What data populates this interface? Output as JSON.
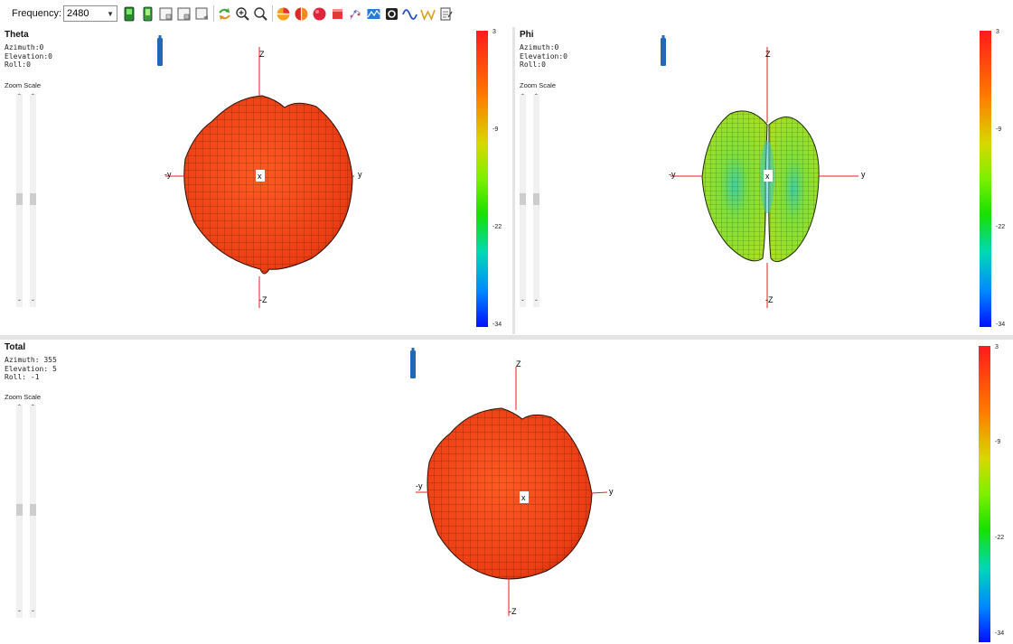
{
  "toolbar": {
    "frequency_label": "Frequency:",
    "frequency_value": "2480",
    "icons": [
      "device-green-icon",
      "device-green-2-icon",
      "phone-icon",
      "tablet-icon",
      "laptop-icon",
      "rotate-icon",
      "zoom-in-icon",
      "zoom-out-icon",
      "pie-chart-icon",
      "half-sphere-icon",
      "sphere-icon",
      "box-icon",
      "scatter-icon",
      "surface-icon",
      "gear-icon",
      "wave-icon",
      "w-wave-icon",
      "notes-icon"
    ]
  },
  "colorbar": {
    "max_label": "3",
    "tick1": "-9",
    "tick2": "-22",
    "min_label": "-34",
    "colors": [
      "#ff1a1a",
      "#ff7a00",
      "#d8d800",
      "#7cf000",
      "#18e000",
      "#00d8b8",
      "#0088ff",
      "#0010ff"
    ]
  },
  "zoom_scale_label": "Zoom Scale",
  "panels": {
    "theta": {
      "title": "Theta",
      "info": "Azimuth:0\nElevation:0\nRoll:0",
      "axes": {
        "z": "Z",
        "neg_z": "-Z",
        "y": "y",
        "neg_y": "-y",
        "x": "x"
      }
    },
    "phi": {
      "title": "Phi",
      "info": "Azimuth:0\nElevation:0\nRoll:0",
      "axes": {
        "z": "Z",
        "neg_z": "-Z",
        "y": "y",
        "neg_y": "-y",
        "x": "x"
      }
    },
    "total": {
      "title": "Total",
      "info": "Azimuth: 355\nElevation: 5\nRoll: -1",
      "axes": {
        "z": "Z",
        "neg_z": "-Z",
        "y": "y",
        "neg_y": "-y",
        "x": "x"
      }
    }
  },
  "colors": {
    "pattern_orange": "#f24a1c",
    "pattern_green": "#8de02a",
    "axis_red": "#e41e1e",
    "antenna_blue": "#2168b5"
  }
}
